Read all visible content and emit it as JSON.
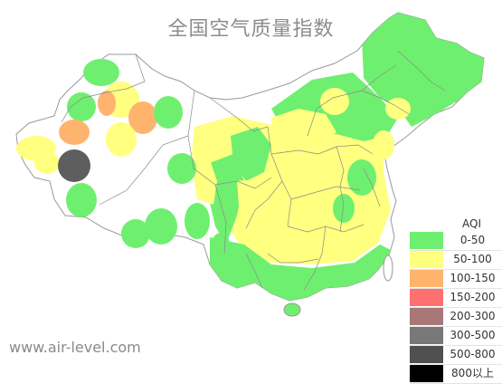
{
  "title": "全国空气质量指数",
  "watermark": "www.air-level.com",
  "legend": {
    "title": "AQI",
    "items": [
      {
        "range": "0-50",
        "color": "#6fef70"
      },
      {
        "range": "50-100",
        "color": "#ffff80"
      },
      {
        "range": "100-150",
        "color": "#ffb46e"
      },
      {
        "range": "150-200",
        "color": "#ff7070"
      },
      {
        "range": "200-300",
        "color": "#a87878"
      },
      {
        "range": "300-500",
        "color": "#787878"
      },
      {
        "range": "500-800",
        "color": "#505050"
      },
      {
        "range": "800以上",
        "color": "#000000"
      }
    ]
  },
  "colors": {
    "good": "#6fef70",
    "moderate": "#ffff80",
    "sensitive": "#ffb46e",
    "severe": "#5e5e5e",
    "land": "#ffffff",
    "border": "#999999"
  }
}
